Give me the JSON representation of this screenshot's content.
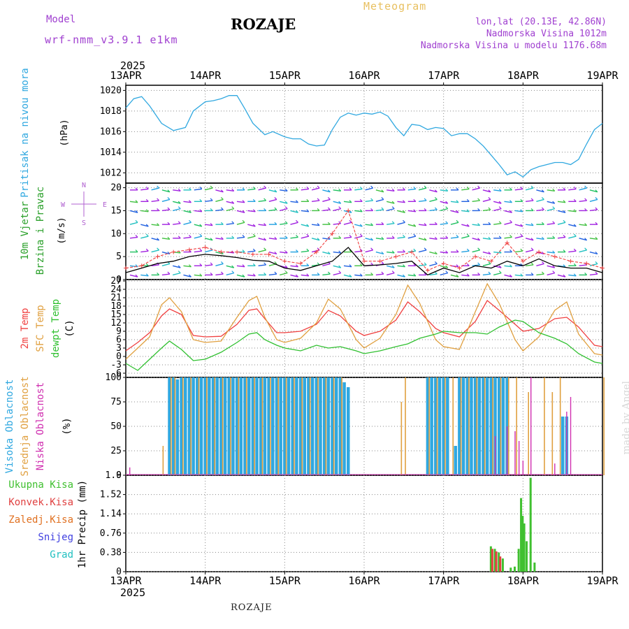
{
  "header": {
    "model_label": "Model",
    "model_name": "wrf-nmm_v3.9.1 e1km",
    "title": "ROZAJE",
    "subtitle": "Meteogram",
    "coords": "lon,lat (20.13E, 42.86N)",
    "elevation": "Nadmorska Visina 1012m",
    "model_elevation": "Nadmorska Visina u modelu 1176.68m",
    "year_top": "2025",
    "year_bottom": "2025"
  },
  "footer": {
    "station": "ROZAJE",
    "credit": "made by Angel"
  },
  "colors": {
    "pressure": "#30a8e0",
    "wind_speed": "#000000",
    "wind_gust": "#f04040",
    "t2m": "#f04040",
    "sfc_temp": "#e0a040",
    "dewpoint": "#30c030",
    "cloud_high": "#30a8e0",
    "cloud_mid": "#e0a040",
    "cloud_low": "#d030b0",
    "precip_total": "#40c030",
    "precip_conv": "#e04040",
    "precip_frz": "#e07020",
    "snow": "#4040e0",
    "hail": "#20c0c0"
  },
  "chart_data": [
    {
      "type": "line",
      "panel": "pressure",
      "ylabel": [
        "Pritisak na nivou mora",
        "(hPa)"
      ],
      "ylim": [
        1011,
        1020.5
      ],
      "yticks": [
        "1012",
        "1014",
        "1016",
        "1018",
        "1020"
      ],
      "x_categories": [
        "13APR",
        "14APR",
        "15APR",
        "16APR",
        "17APR",
        "18APR",
        "19APR"
      ],
      "series": [
        {
          "x": [
            0,
            0.1,
            0.2,
            0.3,
            0.45,
            0.6,
            0.75,
            0.85,
            1.0,
            1.1,
            1.2,
            1.3,
            1.4,
            1.5,
            1.6,
            1.75,
            1.85,
            2.0,
            2.1,
            2.2,
            2.3,
            2.4,
            2.5,
            2.6,
            2.7,
            2.8,
            2.9,
            3.0,
            3.1,
            3.2,
            3.3,
            3.4,
            3.5,
            3.6,
            3.7,
            3.8,
            3.9,
            4.0,
            4.1,
            4.2,
            4.3,
            4.4,
            4.5,
            4.6,
            4.7,
            4.8,
            4.9,
            5.0,
            5.1,
            5.2,
            5.3,
            5.4,
            5.5,
            5.6,
            5.7,
            5.8,
            5.9,
            6.0
          ],
          "values": [
            1018.3,
            1019.2,
            1019.4,
            1018.5,
            1016.8,
            1016.1,
            1016.4,
            1018.0,
            1018.9,
            1019.0,
            1019.2,
            1019.5,
            1019.5,
            1018.2,
            1016.8,
            1015.7,
            1016.0,
            1015.5,
            1015.3,
            1015.3,
            1014.8,
            1014.6,
            1014.7,
            1016.2,
            1017.4,
            1017.8,
            1017.6,
            1017.8,
            1017.7,
            1017.9,
            1017.5,
            1016.4,
            1015.6,
            1016.7,
            1016.6,
            1016.2,
            1016.4,
            1016.3,
            1015.6,
            1015.8,
            1015.8,
            1015.3,
            1014.6,
            1013.7,
            1012.8,
            1011.8,
            1012.1,
            1011.6,
            1012.3,
            1012.6,
            1012.8,
            1013.0,
            1013.0,
            1012.8,
            1013.3,
            1014.8,
            1016.2,
            1016.8
          ]
        }
      ]
    },
    {
      "type": "line",
      "panel": "wind",
      "ylabel": [
        "10m Vjetar",
        "Brzina i Pravac",
        "(m/s)"
      ],
      "compass_labels": [
        "N",
        "W",
        "E",
        "S"
      ],
      "ylim": [
        0,
        21
      ],
      "yticks": [
        "0",
        "5",
        "10",
        "15",
        "20"
      ],
      "series": [
        {
          "name": "speed",
          "x": [
            0,
            0.2,
            0.4,
            0.6,
            0.8,
            1.0,
            1.2,
            1.4,
            1.6,
            1.8,
            2.0,
            2.2,
            2.4,
            2.6,
            2.8,
            3.0,
            3.2,
            3.4,
            3.6,
            3.8,
            4.0,
            4.2,
            4.4,
            4.6,
            4.8,
            5.0,
            5.2,
            5.4,
            5.6,
            5.8,
            6.0
          ],
          "values": [
            1.5,
            2.5,
            3.5,
            4.0,
            5.0,
            5.5,
            5.2,
            4.8,
            4.2,
            4.0,
            2.5,
            2.0,
            3.0,
            4.0,
            7.0,
            3.0,
            3.2,
            3.5,
            4.0,
            1.0,
            2.5,
            1.5,
            3.0,
            2.5,
            4.0,
            3.0,
            4.5,
            3.0,
            2.5,
            2.5,
            1.5
          ]
        },
        {
          "name": "gust",
          "x": [
            0,
            0.2,
            0.4,
            0.6,
            0.8,
            1.0,
            1.2,
            1.4,
            1.6,
            1.8,
            2.0,
            2.2,
            2.4,
            2.6,
            2.8,
            3.0,
            3.2,
            3.4,
            3.6,
            3.8,
            4.0,
            4.2,
            4.4,
            4.6,
            4.8,
            5.0,
            5.2,
            5.4,
            5.6,
            5.8,
            6.0
          ],
          "values": [
            2.5,
            3.0,
            5.0,
            6.0,
            6.5,
            7.0,
            6.0,
            6.0,
            5.5,
            5.5,
            4.0,
            3.5,
            6.0,
            10.0,
            15.0,
            4.0,
            4.0,
            5.0,
            6.0,
            2.0,
            3.5,
            2.5,
            5.0,
            4.0,
            8.0,
            4.0,
            6.0,
            5.0,
            4.0,
            3.5,
            2.5
          ]
        }
      ]
    },
    {
      "type": "line",
      "panel": "temperature",
      "ylabel": [
        "2m Temp",
        "SFC Temp",
        "dewpt Temp",
        "(C)"
      ],
      "ylim": [
        -7.5,
        27.5
      ],
      "yticks": [
        "27",
        "24",
        "21",
        "18",
        "15",
        "12",
        "9",
        "6",
        "3",
        "0",
        "-3",
        "-6"
      ],
      "series": [
        {
          "name": "2m Temp",
          "x": [
            0,
            0.15,
            0.3,
            0.45,
            0.55,
            0.7,
            0.85,
            1.0,
            1.2,
            1.4,
            1.55,
            1.65,
            1.75,
            1.9,
            2.0,
            2.2,
            2.4,
            2.55,
            2.7,
            2.9,
            3.0,
            3.2,
            3.4,
            3.55,
            3.7,
            3.9,
            4.0,
            4.2,
            4.4,
            4.55,
            4.7,
            4.9,
            5.0,
            5.2,
            5.4,
            5.55,
            5.7,
            5.9,
            6.0
          ],
          "values": [
            2.0,
            5.0,
            8.5,
            14.5,
            17.0,
            15.0,
            7.5,
            7.0,
            7.2,
            11.5,
            16.5,
            17.0,
            13.5,
            8.5,
            8.5,
            9.0,
            11.5,
            16.5,
            14.5,
            9.0,
            7.5,
            9.0,
            13.0,
            19.5,
            16.0,
            10.0,
            8.5,
            7.0,
            12.5,
            20.0,
            16.5,
            11.5,
            9.0,
            10.0,
            13.5,
            14.0,
            10.5,
            4.0,
            3.5
          ]
        },
        {
          "name": "SFC Temp",
          "x": [
            0,
            0.15,
            0.3,
            0.45,
            0.55,
            0.7,
            0.85,
            1.0,
            1.2,
            1.4,
            1.55,
            1.65,
            1.75,
            1.9,
            2.0,
            2.2,
            2.4,
            2.55,
            2.7,
            2.9,
            3.0,
            3.2,
            3.4,
            3.55,
            3.7,
            3.9,
            4.0,
            4.2,
            4.4,
            4.55,
            4.7,
            4.9,
            5.0,
            5.2,
            5.4,
            5.55,
            5.7,
            5.9,
            6.0
          ],
          "values": [
            -1.0,
            3.0,
            7.0,
            18.5,
            21.0,
            16.0,
            6.0,
            5.0,
            5.5,
            14.0,
            20.0,
            21.5,
            14.0,
            6.0,
            5.0,
            6.5,
            12.0,
            20.5,
            17.0,
            6.0,
            3.0,
            6.5,
            15.0,
            25.5,
            19.0,
            6.0,
            3.5,
            2.5,
            16.0,
            26.0,
            19.0,
            6.0,
            2.0,
            7.0,
            16.5,
            19.5,
            8.0,
            1.0,
            0.5
          ]
        },
        {
          "name": "dewpt Temp",
          "x": [
            0,
            0.15,
            0.3,
            0.45,
            0.55,
            0.7,
            0.85,
            1.0,
            1.2,
            1.4,
            1.55,
            1.65,
            1.75,
            1.9,
            2.0,
            2.2,
            2.4,
            2.55,
            2.7,
            2.9,
            3.0,
            3.2,
            3.4,
            3.55,
            3.7,
            3.9,
            4.0,
            4.2,
            4.4,
            4.55,
            4.7,
            4.9,
            5.0,
            5.2,
            5.4,
            5.55,
            5.7,
            5.9,
            6.0
          ],
          "values": [
            -2.5,
            -5.0,
            -1.0,
            3.0,
            5.5,
            2.5,
            -1.5,
            -1.0,
            1.5,
            5.0,
            8.0,
            8.5,
            6.0,
            4.0,
            3.0,
            2.0,
            4.0,
            3.0,
            3.5,
            2.0,
            1.0,
            2.0,
            3.5,
            4.5,
            6.5,
            8.0,
            9.0,
            8.5,
            8.5,
            8.0,
            10.5,
            13.0,
            12.5,
            8.5,
            6.5,
            4.5,
            1.0,
            -2.0,
            -2.5
          ]
        }
      ]
    },
    {
      "type": "bar",
      "panel": "clouds",
      "ylabel": [
        "Visoka Oblacnost",
        "Srednja Oblacnost",
        "Niska Oblacnost",
        "(%)"
      ],
      "ylim": [
        0,
        100
      ],
      "yticks": [
        "0",
        "25",
        "50",
        "75",
        "100"
      ],
      "series": [
        {
          "name": "Visoka Oblacnost",
          "x": [
            0.55,
            0.6,
            0.65,
            0.7,
            0.75,
            0.8,
            0.85,
            0.9,
            0.95,
            1.0,
            1.05,
            1.1,
            1.15,
            1.2,
            1.25,
            1.3,
            1.35,
            1.4,
            1.45,
            1.5,
            1.55,
            1.6,
            1.65,
            1.7,
            1.75,
            1.8,
            1.85,
            1.9,
            1.95,
            2.0,
            2.05,
            2.1,
            2.15,
            2.2,
            2.25,
            2.3,
            2.35,
            2.4,
            2.45,
            2.5,
            2.55,
            2.6,
            2.65,
            2.7,
            2.75,
            2.8,
            3.8,
            3.85,
            3.9,
            3.95,
            4.0,
            4.05,
            4.15,
            4.2,
            4.25,
            4.3,
            4.35,
            4.4,
            4.45,
            4.5,
            4.55,
            4.6,
            4.65,
            4.7,
            4.75,
            4.8,
            5.5,
            5.55
          ],
          "values": [
            100,
            100,
            98,
            100,
            100,
            100,
            100,
            100,
            100,
            100,
            100,
            100,
            100,
            100,
            100,
            100,
            100,
            100,
            100,
            100,
            100,
            100,
            100,
            100,
            100,
            100,
            100,
            100,
            100,
            100,
            100,
            100,
            100,
            100,
            100,
            100,
            100,
            100,
            100,
            100,
            100,
            100,
            100,
            100,
            95,
            90,
            100,
            100,
            100,
            100,
            100,
            100,
            30,
            100,
            100,
            100,
            100,
            100,
            100,
            100,
            100,
            100,
            100,
            100,
            100,
            100,
            60,
            60
          ]
        },
        {
          "name": "Srednja Oblacnost",
          "x": [
            0.45,
            0.55,
            0.6,
            0.7,
            0.8,
            0.9,
            1.0,
            1.1,
            1.2,
            1.3,
            1.4,
            1.5,
            1.6,
            1.7,
            1.8,
            1.9,
            2.0,
            2.1,
            2.2,
            2.3,
            2.4,
            2.5,
            2.6,
            2.7,
            3.45,
            3.5,
            3.8,
            3.9,
            4.0,
            4.1,
            4.2,
            4.3,
            4.4,
            4.5,
            4.6,
            4.7,
            4.8,
            4.9,
            5.05,
            5.25,
            5.35,
            5.45,
            6.0
          ],
          "values": [
            30,
            100,
            100,
            100,
            100,
            100,
            100,
            100,
            100,
            100,
            100,
            100,
            100,
            100,
            100,
            100,
            100,
            100,
            100,
            100,
            100,
            100,
            100,
            100,
            75,
            100,
            100,
            100,
            100,
            100,
            100,
            100,
            100,
            100,
            100,
            100,
            100,
            100,
            85,
            100,
            85,
            100,
            100
          ]
        },
        {
          "name": "Niska Oblacnost",
          "x": [
            0.05,
            4.65,
            4.8,
            4.9,
            4.95,
            5.0,
            5.1,
            5.4,
            5.55,
            5.6
          ],
          "values": [
            8,
            40,
            50,
            45,
            35,
            15,
            100,
            12,
            65,
            80
          ]
        }
      ]
    },
    {
      "type": "bar",
      "panel": "precip",
      "ylabel": [
        "1hr Precip (mm)"
      ],
      "legend": [
        "Ukupna Kisa",
        "Konvek.Kisa",
        "Zaledj.Kisa",
        "Snijeg",
        "Grad"
      ],
      "ylim": [
        0,
        1.9
      ],
      "yticks": [
        "0",
        "0.38",
        "0.76",
        "1.14",
        "1.52",
        "1.9"
      ],
      "x_categories": [
        "13APR",
        "14APR",
        "15APR",
        "16APR",
        "17APR",
        "18APR",
        "19APR"
      ],
      "series": [
        {
          "name": "Ukupna Kisa",
          "x": [
            4.6,
            4.65,
            4.7,
            4.75,
            4.85,
            4.9,
            4.95,
            4.98,
            5.0,
            5.02,
            5.05,
            5.1,
            5.15
          ],
          "values": [
            0.5,
            0.45,
            0.38,
            0.26,
            0.08,
            0.1,
            0.45,
            1.45,
            1.1,
            0.95,
            0.6,
            1.85,
            0.18
          ]
        },
        {
          "name": "Konvek.Kisa",
          "x": [
            4.6,
            4.65,
            4.7
          ],
          "values": [
            0.45,
            0.4,
            0.3
          ]
        }
      ]
    }
  ]
}
